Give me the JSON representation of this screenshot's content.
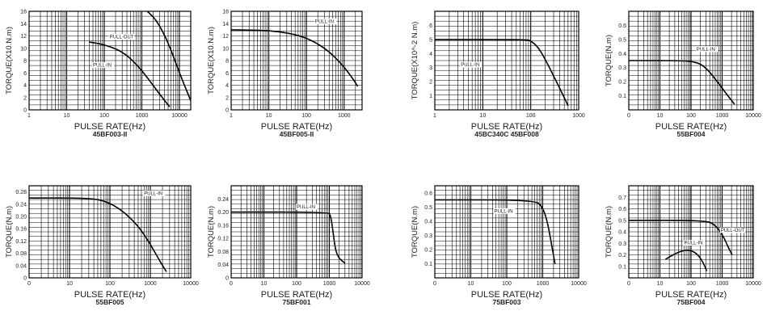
{
  "chart_data": [
    {
      "type": "line",
      "title": "45BF003-II",
      "xlabel": "PULSE RATE(Hz)",
      "ylabel": "TORQUE(X10.N.m)",
      "xscale": "log",
      "xlim": [
        1,
        20000
      ],
      "ylim": [
        0,
        16
      ],
      "xticks": [
        "1",
        "10",
        "100",
        "1000",
        "10000"
      ],
      "yticks": [
        "0",
        "2",
        "4",
        "6",
        "8",
        "10",
        "12",
        "14",
        "16"
      ],
      "series": [
        {
          "name": "PULL-OUT",
          "points": [
            [
              1400,
              16
            ],
            [
              2500,
              14.5
            ],
            [
              5000,
              11
            ],
            [
              10000,
              6
            ],
            [
              20000,
              1.5
            ]
          ]
        },
        {
          "name": "PULL-IN",
          "points": [
            [
              40,
              11
            ],
            [
              100,
              10.6
            ],
            [
              300,
              9.5
            ],
            [
              700,
              7.5
            ],
            [
              1500,
              5
            ],
            [
              3000,
              2.5
            ],
            [
              5500,
              0.5
            ]
          ]
        }
      ],
      "annotations": [
        {
          "text": "PULL-OUT",
          "x": 140,
          "y": 11.6
        },
        {
          "text": "PULL-IN",
          "x": 50,
          "y": 7
        }
      ]
    },
    {
      "type": "line",
      "title": "45BF005-II",
      "xlabel": "PULSE RATE(Hz)",
      "ylabel": "TORQUE(X10.N.m)",
      "xscale": "log",
      "xlim": [
        1,
        3000
      ],
      "ylim": [
        0,
        16
      ],
      "xticks": [
        "1",
        "10",
        "100",
        "1000"
      ],
      "yticks": [
        "0",
        "2",
        "4",
        "6",
        "8",
        "10",
        "12",
        "14",
        "16"
      ],
      "series": [
        {
          "name": "PULL-IN",
          "points": [
            [
              1,
              13
            ],
            [
              10,
              12.9
            ],
            [
              50,
              12.3
            ],
            [
              150,
              11.2
            ],
            [
              400,
              9.5
            ],
            [
              900,
              7.3
            ],
            [
              1600,
              5.3
            ],
            [
              2300,
              3.8
            ]
          ]
        }
      ],
      "annotations": [
        {
          "text": "PULL-IN",
          "x": 170,
          "y": 14.1
        }
      ]
    },
    {
      "type": "line",
      "title": "45BC340C 45BF008",
      "xlabel": "PULSE RATE(Hz)",
      "ylabel": "TORQUE(X10^-2 N.m)",
      "xscale": "log",
      "xlim": [
        1,
        1000
      ],
      "ylim": [
        0,
        7
      ],
      "xticks": [
        "1",
        "10",
        "100",
        "1000"
      ],
      "yticks": [
        "1",
        "2",
        "3",
        "4",
        "5",
        "6"
      ],
      "series": [
        {
          "name": "PULL-IN",
          "points": [
            [
              1,
              5
            ],
            [
              80,
              5
            ],
            [
              100,
              4.9
            ],
            [
              140,
              4.5
            ],
            [
              200,
              3.6
            ],
            [
              300,
              2.4
            ],
            [
              450,
              1.2
            ],
            [
              600,
              0.3
            ]
          ]
        }
      ],
      "annotations": [
        {
          "text": "PULL-IN",
          "x": 3.5,
          "y": 3.1
        }
      ]
    },
    {
      "type": "line",
      "title": "55BF004",
      "xlabel": "PULSE RATE(Hz)",
      "ylabel": "TORQUE(N.m)",
      "xscale": "log",
      "xlim": [
        1,
        10000
      ],
      "ylim": [
        0,
        0.7
      ],
      "xticks": [
        "0",
        "10",
        "100",
        "1000",
        "10000"
      ],
      "yticks": [
        "0.1",
        "0.2",
        "0.3",
        "0.4",
        "0.5",
        "0.6"
      ],
      "series": [
        {
          "name": "PULL-IN",
          "points": [
            [
              1,
              0.35
            ],
            [
              50,
              0.35
            ],
            [
              150,
              0.34
            ],
            [
              300,
              0.3
            ],
            [
              600,
              0.22
            ],
            [
              1200,
              0.13
            ],
            [
              2500,
              0.04
            ]
          ]
        }
      ],
      "annotations": [
        {
          "text": "PULL-IN",
          "x": 150,
          "y": 0.42
        }
      ]
    },
    {
      "type": "line",
      "title": "55BF005",
      "xlabel": "PULSE RATE(Hz)",
      "ylabel": "TORQUE(N.m)",
      "xscale": "log",
      "xlim": [
        1,
        10000
      ],
      "ylim": [
        0,
        0.3
      ],
      "xticks": [
        "0",
        "10",
        "100",
        "1000",
        "10000"
      ],
      "yticks": [
        "0",
        "0.04",
        "0.08",
        "0.12",
        "0.16",
        "0.20",
        "0.24",
        "0.28"
      ],
      "series": [
        {
          "name": "PULL-IN",
          "points": [
            [
              1,
              0.26
            ],
            [
              30,
              0.26
            ],
            [
              80,
              0.25
            ],
            [
              200,
              0.22
            ],
            [
              500,
              0.17
            ],
            [
              1000,
              0.11
            ],
            [
              1800,
              0.05
            ],
            [
              2500,
              0.02
            ]
          ]
        }
      ],
      "annotations": [
        {
          "text": "PULL-IN",
          "x": 700,
          "y": 0.27
        }
      ]
    },
    {
      "type": "line",
      "title": "75BF001",
      "xlabel": "PULSE RATE(Hz)",
      "ylabel": "TORQUE(N.m)",
      "xscale": "log",
      "xlim": [
        1,
        10000
      ],
      "ylim": [
        0,
        0.28
      ],
      "xticks": [
        "0",
        "10",
        "100",
        "1000",
        "10000"
      ],
      "yticks": [
        "0",
        "0.04",
        "0.08",
        "0.12",
        "0.16",
        "0.20",
        "0.24"
      ],
      "series": [
        {
          "name": "PULL-IN",
          "points": [
            [
              1,
              0.2
            ],
            [
              900,
              0.2
            ],
            [
              1100,
              0.19
            ],
            [
              1300,
              0.14
            ],
            [
              1500,
              0.09
            ],
            [
              1900,
              0.06
            ],
            [
              3000,
              0.045
            ]
          ]
        }
      ],
      "annotations": [
        {
          "text": "PULL-IN",
          "x": 100,
          "y": 0.211
        }
      ]
    },
    {
      "type": "line",
      "title": "75BF003",
      "xlabel": "PULSE RATE(Hz)",
      "ylabel": "TORQUE(N.m)",
      "xscale": "log",
      "xlim": [
        1,
        10000
      ],
      "ylim": [
        0,
        0.65
      ],
      "xticks": [
        "0",
        "10",
        "100",
        "1000",
        "10000"
      ],
      "yticks": [
        "0.1",
        "0.2",
        "0.3",
        "0.4",
        "0.5",
        "0.6"
      ],
      "series": [
        {
          "name": "PULL-IN",
          "points": [
            [
              1,
              0.55
            ],
            [
              600,
              0.55
            ],
            [
              1000,
              0.5
            ],
            [
              1400,
              0.38
            ],
            [
              1800,
              0.22
            ],
            [
              2200,
              0.1
            ]
          ]
        }
      ],
      "annotations": [
        {
          "text": "PULL-IN",
          "x": 45,
          "y": 0.46
        }
      ]
    },
    {
      "type": "line",
      "title": "75BF004",
      "xlabel": "PULSE RATE(Hz)",
      "ylabel": "TORQUE(N.m)",
      "xscale": "log",
      "xlim": [
        1,
        10000
      ],
      "ylim": [
        0,
        0.8
      ],
      "xticks": [
        "0",
        "10",
        "100",
        "1000",
        "10000"
      ],
      "yticks": [
        "0.1",
        "0.2",
        "0.3",
        "0.4",
        "0.5",
        "0.6",
        "0.7"
      ],
      "series": [
        {
          "name": "PULL-OUT",
          "points": [
            [
              1,
              0.5
            ],
            [
              300,
              0.5
            ],
            [
              600,
              0.46
            ],
            [
              1100,
              0.36
            ],
            [
              1600,
              0.26
            ],
            [
              2100,
              0.2
            ]
          ]
        },
        {
          "name": "PULL-IN",
          "points": [
            [
              15,
              0.16
            ],
            [
              30,
              0.21
            ],
            [
              60,
              0.24
            ],
            [
              100,
              0.24
            ],
            [
              170,
              0.2
            ],
            [
              250,
              0.13
            ],
            [
              320,
              0.06
            ]
          ]
        }
      ],
      "annotations": [
        {
          "text": "PULL-OUT",
          "x": 900,
          "y": 0.4
        },
        {
          "text": "PULL-IN",
          "x": 60,
          "y": 0.29
        }
      ]
    }
  ]
}
